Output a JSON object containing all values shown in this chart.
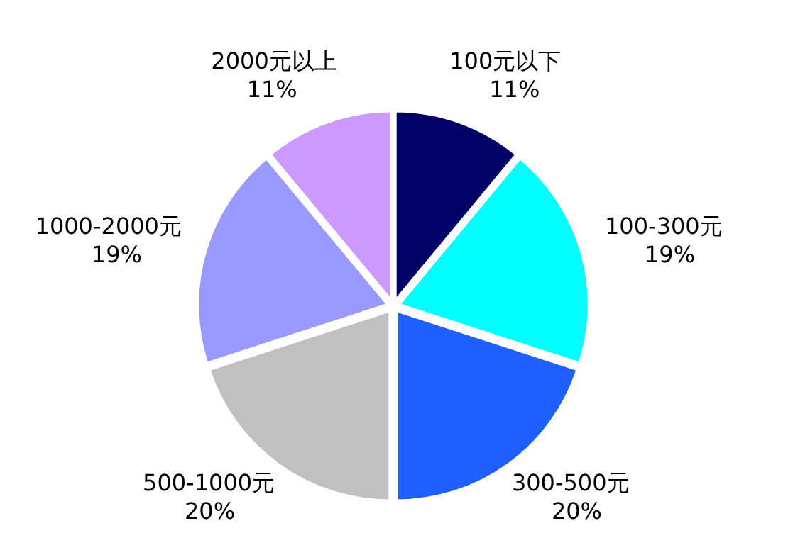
{
  "chart_data": {
    "type": "pie",
    "categories": [
      "100元以下",
      "100-300元",
      "300-500元",
      "500-1000元",
      "1000-2000元",
      "2000元以上"
    ],
    "values": [
      11,
      19,
      20,
      20,
      19,
      11
    ],
    "colors": [
      "#000066",
      "#00ffff",
      "#1f5fff",
      "#c0c0c0",
      "#9999ff",
      "#cc99ff"
    ],
    "value_labels": [
      "11%",
      "19%",
      "20%",
      "20%",
      "19%",
      "11%"
    ],
    "legend": false
  }
}
